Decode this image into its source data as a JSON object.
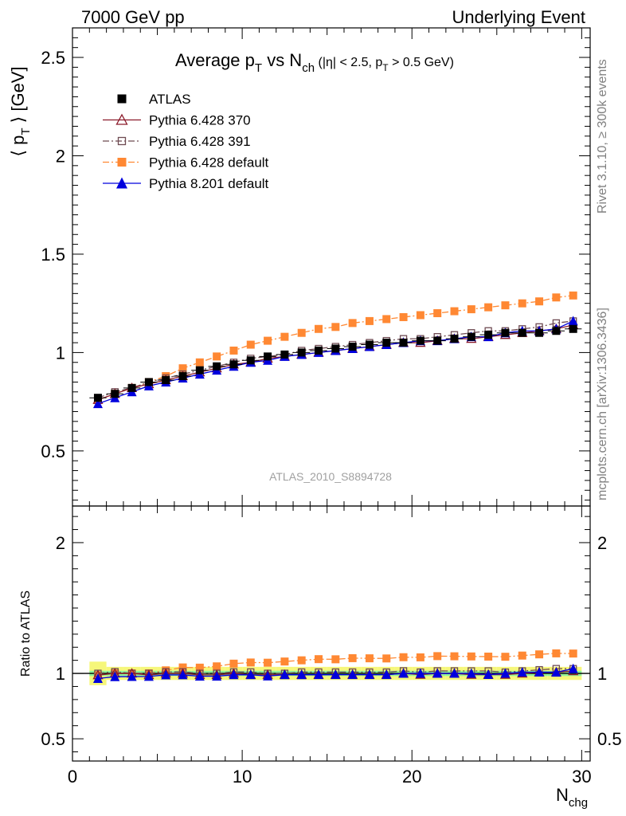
{
  "header": {
    "left": "7000 GeV pp",
    "right": "Underlying Event"
  },
  "side_text": {
    "rivet": "Rivet 3.1.10, ≥ 300k events",
    "mcplots": "mcplots.cern.ch [arXiv:1306.3436]"
  },
  "analysis_id": "ATLAS_2010_S8894728",
  "title": {
    "prefix": "Average p",
    "sub1": "T",
    "mid": " vs N",
    "sub2": "ch",
    "cut_a": " (|η| < 2.5, p",
    "cut_sub": "T",
    "cut_b": " > 0.5 GeV)"
  },
  "axes": {
    "ylabel_main": "⟨ p",
    "ylabel_main_sub": "T",
    "ylabel_main_tail": " ⟩ [GeV]",
    "ylabel_ratio": "Ratio to ATLAS",
    "xlabel": "N",
    "xlabel_sub": "chg",
    "x_range": [
      0,
      30.5
    ],
    "y_main_range": [
      0.22,
      2.65
    ],
    "y_ratio_range": [
      0.33,
      2.28
    ],
    "x_ticks": [
      0,
      10,
      20,
      30
    ],
    "y_main_ticks": [
      0.5,
      1,
      1.5,
      2,
      2.5
    ],
    "y_ratio_ticks": [
      0.5,
      1,
      2
    ],
    "y_main_tick_labels": [
      "0.5",
      "1",
      "1.5",
      "2",
      "2.5"
    ],
    "y_ratio_tick_labels": [
      "0.5",
      "1",
      "2"
    ],
    "y_ratio_right_labels": [
      "0.5",
      "1",
      "2"
    ],
    "x_tick_labels": [
      "0",
      "10",
      "20",
      "30"
    ]
  },
  "legend": {
    "position": "top-left",
    "items": [
      {
        "label": "ATLAS",
        "color": "#000000",
        "marker": "filled-square",
        "line": "none"
      },
      {
        "label": "Pythia 6.428 370",
        "color": "#8b1a2a",
        "marker": "open-triangle",
        "line": "solid"
      },
      {
        "label": "Pythia 6.428 391",
        "color": "#6e4a52",
        "marker": "open-square",
        "line": "dashdot"
      },
      {
        "label": "Pythia 6.428 default",
        "color": "#ff8833",
        "marker": "filled-square",
        "line": "dashdot"
      },
      {
        "label": "Pythia 8.201 default",
        "color": "#0000dd",
        "marker": "filled-triangle",
        "line": "solid"
      }
    ]
  },
  "chart_data": {
    "type": "scatter",
    "x": [
      1.5,
      2.5,
      3.5,
      4.5,
      5.5,
      6.5,
      7.5,
      8.5,
      9.5,
      10.5,
      11.5,
      12.5,
      13.5,
      14.5,
      15.5,
      16.5,
      17.5,
      18.5,
      19.5,
      20.5,
      21.5,
      22.5,
      23.5,
      24.5,
      25.5,
      26.5,
      27.5,
      28.5,
      29.5
    ],
    "series": [
      {
        "name": "ATLAS",
        "values": [
          0.77,
          0.79,
          0.82,
          0.85,
          0.86,
          0.88,
          0.91,
          0.93,
          0.94,
          0.96,
          0.98,
          0.99,
          1.0,
          1.01,
          1.02,
          1.03,
          1.04,
          1.05,
          1.05,
          1.06,
          1.06,
          1.07,
          1.08,
          1.09,
          1.1,
          1.1,
          1.1,
          1.11,
          1.12
        ]
      },
      {
        "name": "Pythia 6.428 370",
        "values": [
          0.76,
          0.79,
          0.82,
          0.84,
          0.86,
          0.88,
          0.9,
          0.92,
          0.94,
          0.95,
          0.97,
          0.98,
          0.99,
          1.0,
          1.01,
          1.02,
          1.03,
          1.04,
          1.05,
          1.05,
          1.06,
          1.07,
          1.07,
          1.08,
          1.09,
          1.1,
          1.11,
          1.12,
          1.14
        ]
      },
      {
        "name": "Pythia 6.428 391",
        "values": [
          0.77,
          0.8,
          0.82,
          0.85,
          0.87,
          0.89,
          0.91,
          0.93,
          0.95,
          0.97,
          0.98,
          0.99,
          1.01,
          1.02,
          1.03,
          1.04,
          1.05,
          1.06,
          1.07,
          1.07,
          1.08,
          1.09,
          1.1,
          1.11,
          1.11,
          1.12,
          1.13,
          1.15,
          1.16
        ]
      },
      {
        "name": "Pythia 6.428 default",
        "values": [
          0.76,
          0.79,
          0.82,
          0.85,
          0.88,
          0.92,
          0.95,
          0.98,
          1.01,
          1.04,
          1.06,
          1.08,
          1.1,
          1.12,
          1.13,
          1.15,
          1.16,
          1.17,
          1.18,
          1.19,
          1.2,
          1.21,
          1.22,
          1.23,
          1.24,
          1.25,
          1.26,
          1.28,
          1.29
        ]
      },
      {
        "name": "Pythia 8.201 default",
        "values": [
          0.74,
          0.77,
          0.8,
          0.83,
          0.85,
          0.87,
          0.89,
          0.91,
          0.93,
          0.95,
          0.96,
          0.98,
          0.99,
          1.0,
          1.01,
          1.02,
          1.03,
          1.04,
          1.05,
          1.06,
          1.06,
          1.07,
          1.08,
          1.08,
          1.1,
          1.11,
          1.11,
          1.12,
          1.16
        ]
      }
    ],
    "ratio": {
      "ylabel": "Ratio to ATLAS",
      "band_inner": 0.02,
      "band_outer": 0.05,
      "first_bin_band_outer": 0.09
    }
  }
}
